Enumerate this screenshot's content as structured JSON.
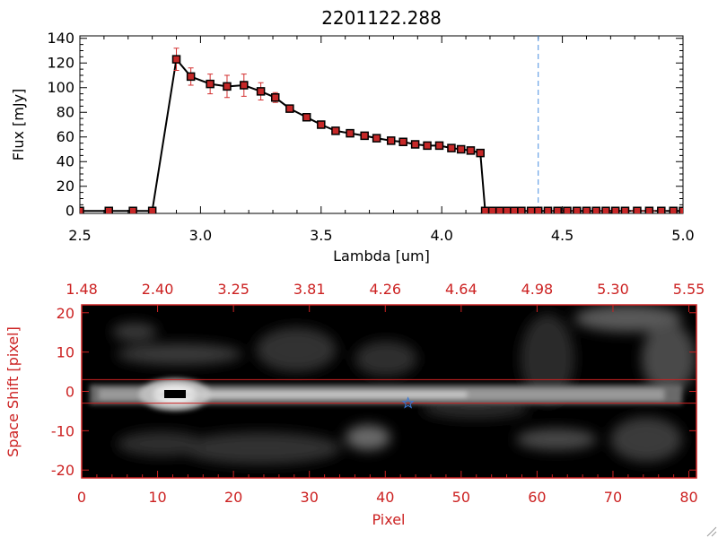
{
  "title": "2201122.288",
  "colors": {
    "line": "#000000",
    "marker": "#c62828",
    "error": "#d32f2f",
    "ref_line": "#4a90e2",
    "image_axis": "#cc2222",
    "star": "#3a78d8"
  },
  "chart_data": [
    {
      "type": "line",
      "title": "2201122.288",
      "xlabel": "Lambda [um]",
      "ylabel": "Flux [mJy]",
      "xlim": [
        2.5,
        5.0
      ],
      "ylim": [
        -2,
        142
      ],
      "xticks": [
        "2.5",
        "3.0",
        "3.5",
        "4.0",
        "4.5",
        "5.0"
      ],
      "yticks": [
        "0",
        "20",
        "40",
        "60",
        "80",
        "100",
        "120",
        "140"
      ],
      "reference_line_x": 4.4,
      "series": [
        {
          "x": [
            2.5,
            2.62,
            2.72,
            2.8,
            2.9,
            2.96,
            3.04,
            3.11,
            3.18,
            3.25,
            3.31,
            3.37,
            3.44,
            3.5,
            3.56,
            3.62,
            3.68,
            3.73,
            3.79,
            3.84,
            3.89,
            3.94,
            3.99,
            4.04,
            4.08,
            4.12,
            4.16,
            4.18,
            4.21,
            4.24,
            4.27,
            4.3,
            4.33,
            4.37,
            4.4,
            4.44,
            4.48,
            4.52,
            4.56,
            4.6,
            4.64,
            4.68,
            4.72,
            4.76,
            4.81,
            4.86,
            4.91,
            4.96,
            5.0
          ],
          "y": [
            0,
            0,
            0,
            0,
            123,
            109,
            103,
            101,
            102,
            97,
            92,
            83,
            76,
            70,
            65,
            63,
            61,
            59,
            57,
            56,
            54,
            53,
            53,
            51,
            50,
            49,
            47,
            0,
            0,
            0,
            0,
            0,
            0,
            0,
            0,
            0,
            0,
            0,
            0,
            0,
            0,
            0,
            0,
            0,
            0,
            0,
            0,
            0,
            0
          ],
          "yerr": [
            0,
            0,
            0,
            0,
            9,
            7,
            8,
            9,
            9,
            7,
            4,
            2,
            2,
            2,
            2,
            1,
            1,
            1,
            1,
            1,
            1,
            1,
            1,
            1,
            1,
            1,
            1,
            0,
            0,
            0,
            0,
            0,
            0,
            0,
            0,
            0,
            0,
            0,
            0,
            0,
            0,
            0,
            0,
            0,
            0,
            0,
            0,
            0,
            0
          ]
        }
      ]
    },
    {
      "type": "heatmap",
      "xlabel": "Pixel",
      "ylabel": "Space Shift [pixel]",
      "xlim": [
        0,
        81
      ],
      "ylim": [
        -22,
        22
      ],
      "xticks": [
        "0",
        "10",
        "20",
        "30",
        "40",
        "50",
        "60",
        "70",
        "80"
      ],
      "yticks": [
        "-20",
        "-10",
        "0",
        "10",
        "20"
      ],
      "top_axis_label_values": [
        "1.48",
        "2.40",
        "3.25",
        "3.81",
        "4.26",
        "4.64",
        "4.98",
        "5.30",
        "5.55"
      ],
      "aperture_lines_y": [
        3,
        -3
      ],
      "star_marker": {
        "x": 43,
        "y": -3
      },
      "bright_source_pixel": [
        12,
        -1
      ]
    }
  ]
}
